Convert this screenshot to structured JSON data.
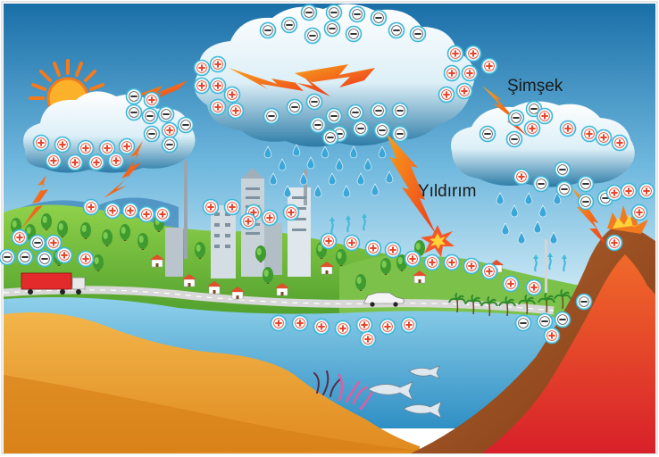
{
  "labels": {
    "lightning_flash": "Şimşek",
    "lightning_strike": "Yıldırım"
  },
  "colors": {
    "sky_top": "#1a6fa8",
    "sky_bottom": "#bfe3f2",
    "cloud": "#eef7fb",
    "cloud_shade": "#1f6e99",
    "lightning": "#f0411b",
    "sea": "#5fb6dd",
    "ground": "#e6a03a",
    "lava": "#e8452a",
    "positive_charge": "#e8452a",
    "negative_charge": "#333333",
    "charge_ring": "#3fb8d8"
  },
  "icons": {
    "positive": "+",
    "negative": "−"
  }
}
